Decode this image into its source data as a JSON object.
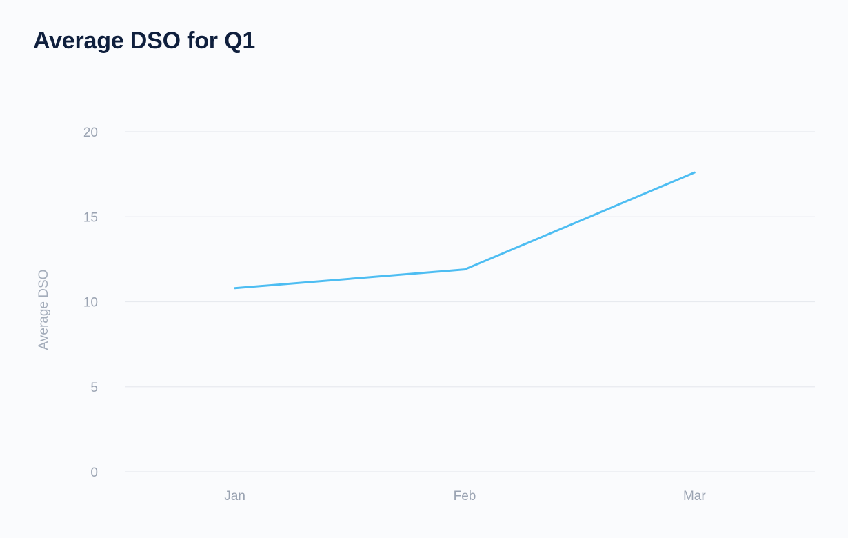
{
  "chart_data": {
    "type": "line",
    "title": "Average DSO for Q1",
    "xlabel": "",
    "ylabel": "Average DSO",
    "categories": [
      "Jan",
      "Feb",
      "Mar"
    ],
    "series": [
      {
        "values": [
          10.8,
          11.9,
          17.6
        ]
      }
    ],
    "ylim": [
      0,
      20
    ],
    "yticks": [
      "0",
      "5",
      "10",
      "15",
      "20"
    ],
    "grid": true,
    "legend": "none",
    "colors": {
      "line": "#4dbdf2",
      "grid": "#e7eaef"
    }
  }
}
